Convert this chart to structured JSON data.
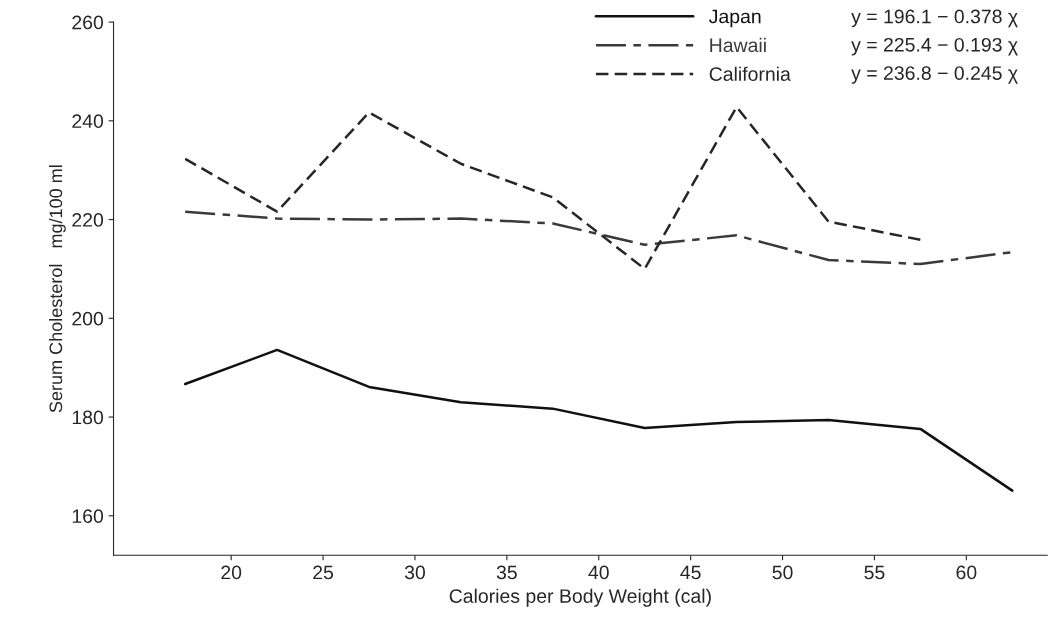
{
  "chart_data": {
    "type": "line",
    "xlabel": "Calories per Body Weight (cal)",
    "ylabel": "Serum Cholesterol   mg/100 ml",
    "x": [
      17.5,
      22.5,
      27.5,
      32.5,
      37.5,
      42.5,
      47.5,
      52.5,
      57.5,
      62.5
    ],
    "series": [
      {
        "name": "Japan",
        "color": "#111111",
        "line_style": "solid",
        "values": [
          186.7,
          193.6,
          186.1,
          183.0,
          181.7,
          177.8,
          179.0,
          179.4,
          177.6,
          165.1
        ]
      },
      {
        "name": "Hawaii",
        "color": "#3a3a3a",
        "line_style": "dashdot",
        "values": [
          221.6,
          220.2,
          220.0,
          220.2,
          219.2,
          214.9,
          216.8,
          211.8,
          211.0,
          213.4
        ]
      },
      {
        "name": "California",
        "color": "#262626",
        "line_style": "dashed",
        "values": [
          232.3,
          221.6,
          241.7,
          231.3,
          224.5,
          210.0,
          242.8,
          219.6,
          215.9,
          null
        ]
      }
    ],
    "annotations": [
      "y = 196.1 − 0.378 χ",
      "y = 225.4 − 0.193 χ",
      "y = 236.8 − 0.245 χ"
    ],
    "xlim": [
      13.6,
      64.4
    ],
    "ylim": [
      152,
      260
    ],
    "xticks": [
      20,
      25,
      30,
      35,
      40,
      45,
      50,
      55,
      60
    ],
    "yticks": [
      160,
      180,
      200,
      220,
      240,
      260
    ],
    "grid": false,
    "legend": "top right",
    "marker": "none"
  }
}
